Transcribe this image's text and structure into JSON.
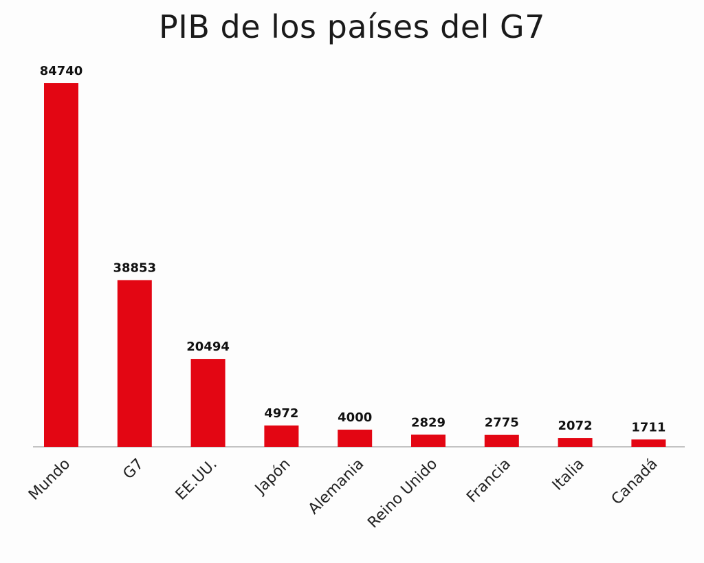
{
  "chart_data": {
    "type": "bar",
    "title": "PIB de los países del G7",
    "categories": [
      "Mundo",
      "G7",
      "EE.UU.",
      "Japón",
      "Alemania",
      "Reino Unido",
      "Francia",
      "Italia",
      "Canadá"
    ],
    "values": [
      84740,
      38853,
      20494,
      4972,
      4000,
      2829,
      2775,
      2072,
      1711
    ],
    "ylim": [
      0,
      84740
    ],
    "grid": false,
    "legend": "none",
    "bar_color": "#e30613"
  }
}
